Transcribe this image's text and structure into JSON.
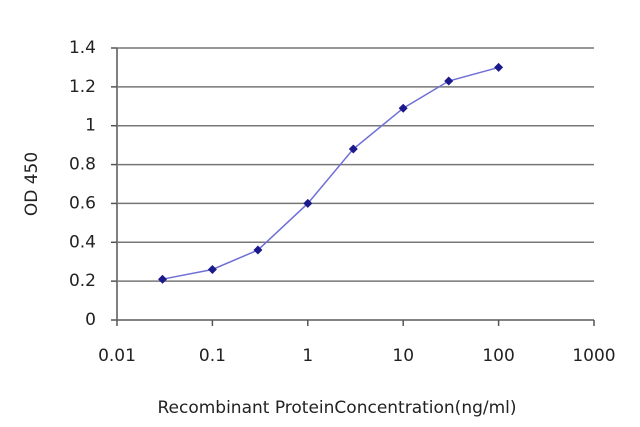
{
  "chart_data": {
    "type": "line",
    "x_label": "Recombinant ProteinConcentration(ng/ml)",
    "y_label": "OD 450",
    "x": [
      0.03,
      0.1,
      0.3,
      1,
      3,
      10,
      30,
      100
    ],
    "series": [
      {
        "color": "#1a1a8c",
        "values": [
          0.21,
          0.26,
          0.36,
          0.6,
          0.88,
          1.09,
          1.23,
          1.3
        ]
      }
    ],
    "xscale": "log",
    "xlim": [
      0.01,
      1000
    ],
    "xticks": [
      0.01,
      0.1,
      1,
      10,
      100,
      1000
    ],
    "ylim": [
      0,
      1.4
    ],
    "yticks": [
      0,
      0.2,
      0.4,
      0.6,
      0.8,
      1,
      1.2,
      1.4
    ],
    "grid": true
  }
}
